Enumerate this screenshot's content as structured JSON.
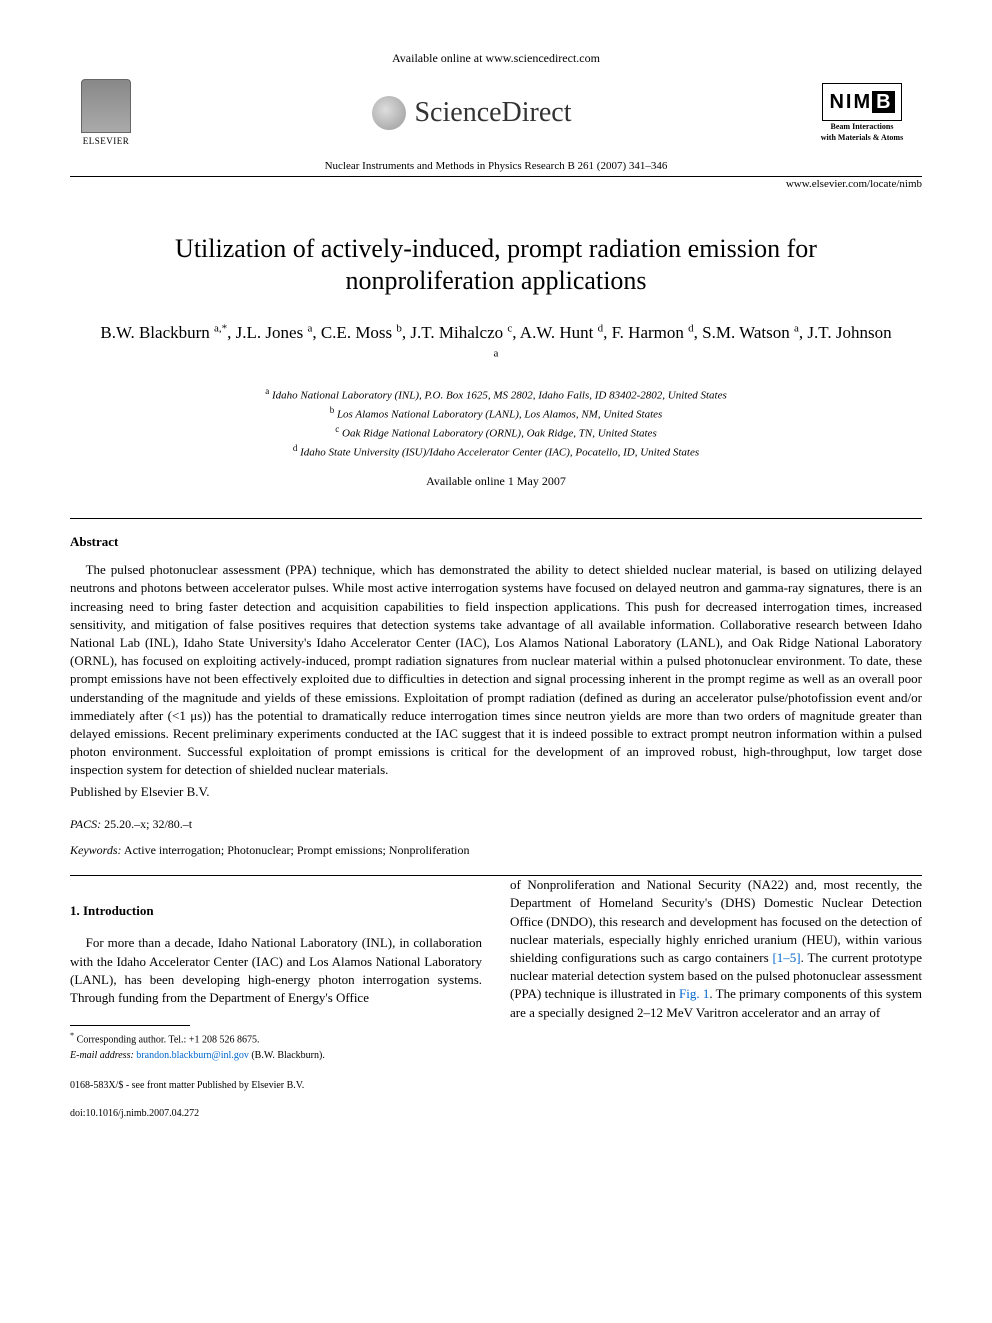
{
  "header": {
    "available_online": "Available online at www.sciencedirect.com",
    "publisher": "ELSEVIER",
    "sciencedirect": "ScienceDirect",
    "journal_ref": "Nuclear Instruments and Methods in Physics Research B 261 (2007) 341–346",
    "badge_nim": "NIM",
    "badge_b": "B",
    "badge_sub1": "Beam Interactions",
    "badge_sub2": "with Materials & Atoms",
    "journal_url": "www.elsevier.com/locate/nimb"
  },
  "title": "Utilization of actively-induced, prompt radiation emission for nonproliferation applications",
  "authors_html": "B.W. Blackburn <sup>a,*</sup>, J.L. Jones <sup>a</sup>, C.E. Moss <sup>b</sup>, J.T. Mihalczo <sup>c</sup>, A.W. Hunt <sup>d</sup>, F. Harmon <sup>d</sup>, S.M. Watson <sup>a</sup>, J.T. Johnson <sup>a</sup>",
  "affiliations": [
    {
      "sup": "a",
      "text": "Idaho National Laboratory (INL), P.O. Box 1625, MS 2802, Idaho Falls, ID 83402-2802, United States"
    },
    {
      "sup": "b",
      "text": "Los Alamos National Laboratory (LANL), Los Alamos, NM, United States"
    },
    {
      "sup": "c",
      "text": "Oak Ridge National Laboratory (ORNL), Oak Ridge, TN, United States"
    },
    {
      "sup": "d",
      "text": "Idaho State University (ISU)/Idaho Accelerator Center (IAC), Pocatello, ID, United States"
    }
  ],
  "available_date": "Available online 1 May 2007",
  "abstract": {
    "heading": "Abstract",
    "body": "The pulsed photonuclear assessment (PPA) technique, which has demonstrated the ability to detect shielded nuclear material, is based on utilizing delayed neutrons and photons between accelerator pulses. While most active interrogation systems have focused on delayed neutron and gamma-ray signatures, there is an increasing need to bring faster detection and acquisition capabilities to field inspection applications. This push for decreased interrogation times, increased sensitivity, and mitigation of false positives requires that detection systems take advantage of all available information. Collaborative research between Idaho National Lab (INL), Idaho State University's Idaho Accelerator Center (IAC), Los Alamos National Laboratory (LANL), and Oak Ridge National Laboratory (ORNL), has focused on exploiting actively-induced, prompt radiation signatures from nuclear material within a pulsed photonuclear environment. To date, these prompt emissions have not been effectively exploited due to difficulties in detection and signal processing inherent in the prompt regime as well as an overall poor understanding of the magnitude and yields of these emissions. Exploitation of prompt radiation (defined as during an accelerator pulse/photofission event and/or immediately after (<1 μs)) has the potential to dramatically reduce interrogation times since neutron yields are more than two orders of magnitude greater than delayed emissions. Recent preliminary experiments conducted at the IAC suggest that it is indeed possible to extract prompt neutron information within a pulsed photon environment. Successful exploitation of prompt emissions is critical for the development of an improved robust, high-throughput, low target dose inspection system for detection of shielded nuclear materials.",
    "published_by": "Published by Elsevier B.V."
  },
  "pacs": {
    "label": "PACS:",
    "value": "25.20.–x; 32/80.–t"
  },
  "keywords": {
    "label": "Keywords:",
    "value": "Active interrogation; Photonuclear; Prompt emissions; Nonproliferation"
  },
  "section1": {
    "heading": "1. Introduction",
    "col1": "For more than a decade, Idaho National Laboratory (INL), in collaboration with the Idaho Accelerator Center (IAC) and Los Alamos National Laboratory (LANL), has been developing high-energy photon interrogation systems. Through funding from the Department of Energy's Office",
    "col2_a": "of Nonproliferation and National Security (NA22) and, most recently, the Department of Homeland Security's (DHS) Domestic Nuclear Detection Office (DNDO), this research and development has focused on the detection of nuclear materials, especially highly enriched uranium (HEU), within various shielding configurations such as cargo containers ",
    "ref1": "[1–5]",
    "col2_b": ". The current prototype nuclear material detection system based on the pulsed photonuclear assessment (PPA) technique is illustrated in ",
    "ref2": "Fig. 1",
    "col2_c": ". The primary components of this system are a specially designed 2–12 MeV Varitron accelerator and an array of"
  },
  "footnote": {
    "corresponding": "Corresponding author. Tel.: +1 208 526 8675.",
    "email_label": "E-mail address:",
    "email": "brandon.blackburn@inl.gov",
    "email_after": "(B.W. Blackburn)."
  },
  "footer": {
    "line1": "0168-583X/$ - see front matter Published by Elsevier B.V.",
    "line2": "doi:10.1016/j.nimb.2007.04.272"
  },
  "colors": {
    "text": "#000000",
    "link": "#0066cc",
    "background": "#ffffff"
  },
  "typography": {
    "base_font": "Times New Roman",
    "title_size_pt": 20,
    "authors_size_pt": 13,
    "body_size_pt": 10,
    "footnote_size_pt": 8
  }
}
